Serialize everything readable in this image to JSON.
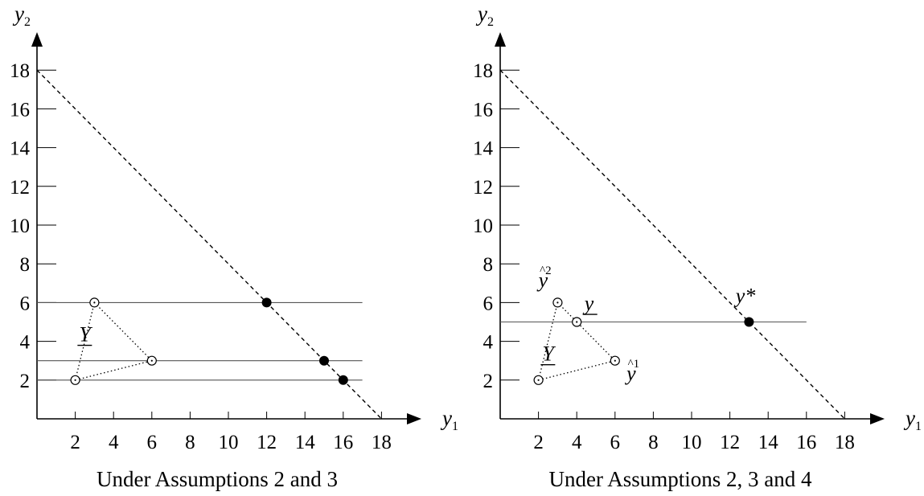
{
  "charts": [
    {
      "id": "left",
      "type": "scatter",
      "title": "",
      "caption": "Under Assumptions 2 and 3",
      "xlabel": "y",
      "xlabel_sub": "1",
      "ylabel": "y",
      "ylabel_sub": "2",
      "xlim": [
        0,
        18
      ],
      "ylim": [
        0,
        18
      ],
      "xticks": [
        2,
        4,
        6,
        8,
        10,
        12,
        14,
        16,
        18
      ],
      "yticks": [
        2,
        4,
        6,
        8,
        10,
        12,
        14,
        16,
        18
      ],
      "frontier": [
        [
          0,
          18
        ],
        [
          18,
          0
        ]
      ],
      "horizontal_lines": [
        {
          "y": 6,
          "x_from": 0,
          "x_to": 17
        },
        {
          "y": 3,
          "x_from": 0,
          "x_to": 17
        },
        {
          "y": 2,
          "x_from": 0,
          "x_to": 17
        }
      ],
      "hull": [
        [
          2,
          2
        ],
        [
          3,
          6
        ],
        [
          6,
          3
        ]
      ],
      "open_points": [
        [
          2,
          2
        ],
        [
          3,
          6
        ],
        [
          6,
          3
        ]
      ],
      "filled_points": [
        [
          12,
          6
        ],
        [
          15,
          3
        ],
        [
          16,
          2
        ]
      ],
      "annotations": [
        {
          "text": "Y",
          "sup": "",
          "x": 2.2,
          "y": 4.0,
          "underline": true
        }
      ]
    },
    {
      "id": "right",
      "type": "scatter",
      "title": "",
      "caption": "Under Assumptions 2, 3  and 4",
      "xlabel": "y",
      "xlabel_sub": "1",
      "ylabel": "y",
      "ylabel_sub": "2",
      "xlim": [
        0,
        18
      ],
      "ylim": [
        0,
        18
      ],
      "xticks": [
        2,
        4,
        6,
        8,
        10,
        12,
        14,
        16,
        18
      ],
      "yticks": [
        2,
        4,
        6,
        8,
        10,
        12,
        14,
        16,
        18
      ],
      "frontier": [
        [
          0,
          18
        ],
        [
          18,
          0
        ]
      ],
      "horizontal_lines": [
        {
          "y": 5,
          "x_from": 0,
          "x_to": 16
        }
      ],
      "hull": [
        [
          2,
          2
        ],
        [
          3,
          6
        ],
        [
          6,
          3
        ]
      ],
      "open_points": [
        [
          2,
          2
        ],
        [
          3,
          6
        ],
        [
          6,
          3
        ],
        [
          4,
          5
        ]
      ],
      "filled_points": [
        [
          13,
          5
        ]
      ],
      "annotations": [
        {
          "text": "Y",
          "sup": "",
          "x": 2.2,
          "y": 3.0,
          "underline": true
        },
        {
          "text": "y",
          "sup": "",
          "x": 4.4,
          "y": 5.6,
          "underline": true
        },
        {
          "text": "y",
          "sup": "^2",
          "x": 2.0,
          "y": 6.8,
          "underline": false
        },
        {
          "text": "y",
          "sup": "^1",
          "x": 6.6,
          "y": 2.0,
          "underline": false
        },
        {
          "text": "y*",
          "sup": "",
          "x": 12.3,
          "y": 6.0,
          "underline": false
        }
      ]
    }
  ]
}
